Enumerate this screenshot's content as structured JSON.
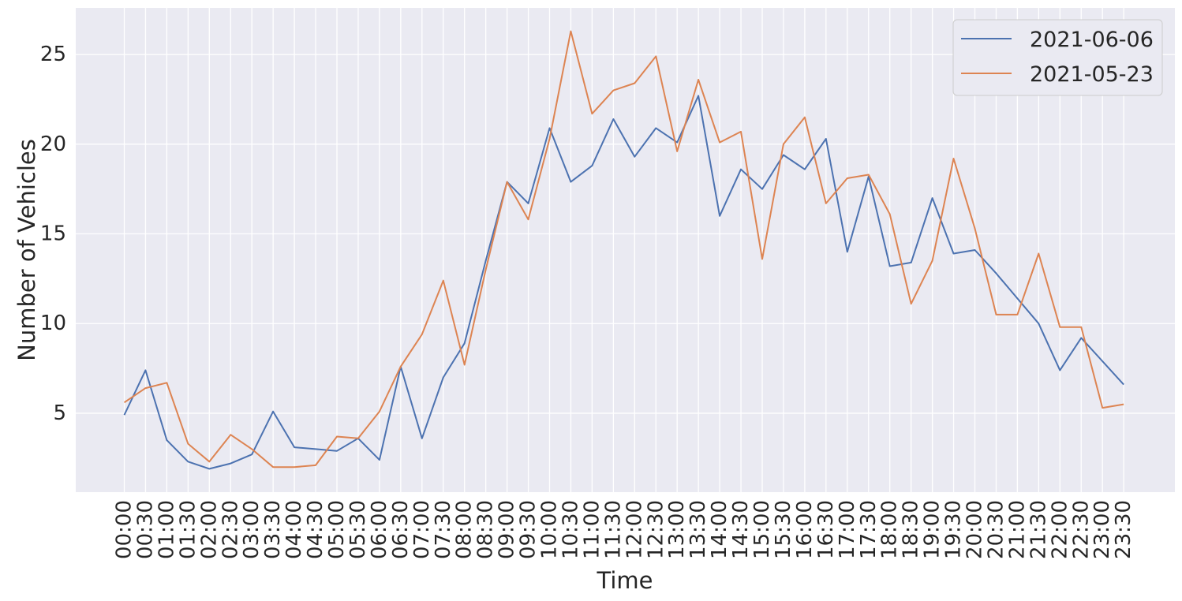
{
  "chart_data": {
    "type": "line",
    "title": "",
    "xlabel": "Time",
    "ylabel": "Number of Vehicles",
    "ylim": [
      0.6,
      27.6
    ],
    "yticks": [
      5,
      10,
      15,
      20,
      25
    ],
    "grid": true,
    "legend_position": "top-right",
    "x": [
      "00:00",
      "00:30",
      "01:00",
      "01:30",
      "02:00",
      "02:30",
      "03:00",
      "03:30",
      "04:00",
      "04:30",
      "05:00",
      "05:30",
      "06:00",
      "06:30",
      "07:00",
      "07:30",
      "08:00",
      "08:30",
      "09:00",
      "09:30",
      "10:00",
      "10:30",
      "11:00",
      "11:30",
      "12:00",
      "12:30",
      "13:00",
      "13:30",
      "14:00",
      "14:30",
      "15:00",
      "15:30",
      "16:00",
      "16:30",
      "17:00",
      "17:30",
      "18:00",
      "18:30",
      "19:00",
      "19:30",
      "20:00",
      "20:30",
      "21:00",
      "21:30",
      "22:00",
      "22:30",
      "23:00",
      "23:30"
    ],
    "series": [
      {
        "name": "2021-06-06",
        "color": "#4c72b0",
        "values": [
          4.9,
          7.4,
          3.5,
          2.3,
          1.9,
          2.2,
          2.7,
          5.1,
          3.1,
          3.0,
          2.9,
          3.6,
          2.4,
          7.6,
          3.6,
          7.0,
          8.9,
          13.5,
          17.9,
          16.7,
          20.9,
          17.9,
          18.8,
          21.4,
          19.3,
          20.9,
          20.1,
          22.7,
          16.0,
          18.6,
          17.5,
          19.4,
          18.6,
          20.3,
          14.0,
          18.2,
          13.2,
          13.4,
          17.0,
          13.9,
          14.1,
          12.8,
          11.4,
          10.0,
          7.4,
          9.2,
          7.9,
          6.6
        ]
      },
      {
        "name": "2021-05-23",
        "color": "#dd8452",
        "values": [
          5.6,
          6.4,
          6.7,
          3.3,
          2.3,
          3.8,
          3.0,
          2.0,
          2.0,
          2.1,
          3.7,
          3.6,
          5.1,
          7.6,
          9.4,
          12.4,
          7.7,
          13.0,
          17.9,
          15.8,
          20.3,
          26.3,
          21.7,
          23.0,
          23.4,
          24.9,
          19.6,
          23.6,
          20.1,
          20.7,
          13.6,
          20.0,
          21.5,
          16.7,
          18.1,
          18.3,
          16.1,
          11.1,
          13.5,
          19.2,
          15.3,
          10.5,
          10.5,
          13.9,
          9.8,
          9.8,
          5.3,
          5.5
        ]
      }
    ]
  }
}
